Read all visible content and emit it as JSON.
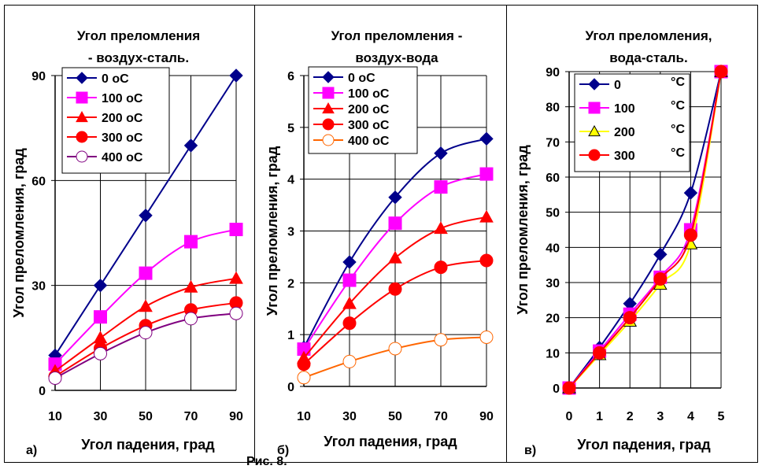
{
  "caption": "Рис. 8.",
  "chart_data": [
    {
      "type": "line",
      "panel_letter": "а)",
      "title_lines": [
        "Угол преломления",
        "- воздух-сталь."
      ],
      "xlabel": "Угол падения, град",
      "ylabel": "Угол преломления, град",
      "x": [
        10,
        30,
        50,
        70,
        90
      ],
      "xticks": [
        "10",
        "30",
        "50",
        "70",
        "90"
      ],
      "ylim": [
        0,
        90
      ],
      "yticks": [
        0,
        30,
        60,
        90
      ],
      "grid": true,
      "legend_position": "top-right",
      "series": [
        {
          "name": "0 оС",
          "color": "#00008B",
          "marker": "diamond",
          "values": [
            10,
            30,
            50,
            70,
            90
          ]
        },
        {
          "name": "100 оС",
          "color": "#FF00FF",
          "marker": "square",
          "values": [
            7.5,
            21,
            33.5,
            42.5,
            46
          ]
        },
        {
          "name": "200 оС",
          "color": "#FF0000",
          "marker": "triangle",
          "values": [
            5.5,
            15,
            24,
            29.5,
            32
          ]
        },
        {
          "name": "300 оС",
          "color": "#FF0000",
          "marker": "circle",
          "values": [
            4,
            12,
            18.5,
            23,
            25
          ]
        },
        {
          "name": "400 оС",
          "color": "#800080",
          "marker": "open-circle",
          "values": [
            3.5,
            10.5,
            16.5,
            20.5,
            22
          ]
        }
      ]
    },
    {
      "type": "line",
      "panel_letter": "б)",
      "title_lines": [
        "Угол преломления -",
        "воздух-вода"
      ],
      "xlabel": "Угол падения, град",
      "ylabel": "Угол преломления, град",
      "x": [
        10,
        30,
        50,
        70,
        90
      ],
      "xticks": [
        "10",
        "30",
        "50",
        "70",
        "90"
      ],
      "ylim": [
        0,
        6
      ],
      "yticks": [
        0,
        1,
        2,
        3,
        4,
        5,
        6
      ],
      "grid": true,
      "legend_position": "top-right",
      "series": [
        {
          "name": "0 оС",
          "color": "#00008B",
          "marker": "diamond",
          "values": [
            0.75,
            2.4,
            3.65,
            4.5,
            4.78
          ]
        },
        {
          "name": "100 оС",
          "color": "#FF00FF",
          "marker": "square",
          "values": [
            0.72,
            2.05,
            3.15,
            3.85,
            4.1
          ]
        },
        {
          "name": "200 оС",
          "color": "#FF0000",
          "marker": "triangle",
          "values": [
            0.55,
            1.6,
            2.48,
            3.05,
            3.27
          ]
        },
        {
          "name": "300 оС",
          "color": "#FF0000",
          "marker": "circle",
          "values": [
            0.43,
            1.22,
            1.88,
            2.3,
            2.43
          ]
        },
        {
          "name": "400 оС",
          "color": "#FF6600",
          "marker": "open-circle",
          "values": [
            0.17,
            0.48,
            0.73,
            0.9,
            0.95
          ]
        }
      ]
    },
    {
      "type": "line",
      "panel_letter": "в)",
      "title_lines": [
        "Угол преломления,",
        "вода-сталь."
      ],
      "xlabel": "Угол падения, град",
      "ylabel": "Угол преломления, град",
      "x": [
        0,
        1,
        2,
        3,
        4,
        5
      ],
      "xticks": [
        "0",
        "1",
        "2",
        "3",
        "4",
        "5"
      ],
      "ylim": [
        0,
        90
      ],
      "yticks": [
        0,
        10,
        20,
        30,
        40,
        50,
        60,
        70,
        80,
        90
      ],
      "grid": true,
      "legend_position": "top-left",
      "series": [
        {
          "name": "0",
          "unit": "°C",
          "color": "#00008B",
          "marker": "diamond",
          "values": [
            0,
            11.5,
            24,
            38,
            55.5,
            90
          ]
        },
        {
          "name": "100",
          "unit": "°C",
          "color": "#FF00FF",
          "marker": "square",
          "values": [
            0,
            10.5,
            21,
            31.5,
            45,
            90
          ]
        },
        {
          "name": "200",
          "unit": "°C",
          "color": "#FFFF00",
          "marker": "triangle",
          "values": [
            0,
            9.5,
            19,
            29.5,
            41,
            90
          ]
        },
        {
          "name": "300",
          "unit": "°C",
          "color": "#FF0000",
          "marker": "circle",
          "values": [
            0,
            10,
            20,
            31,
            43.5,
            90
          ]
        }
      ]
    }
  ]
}
